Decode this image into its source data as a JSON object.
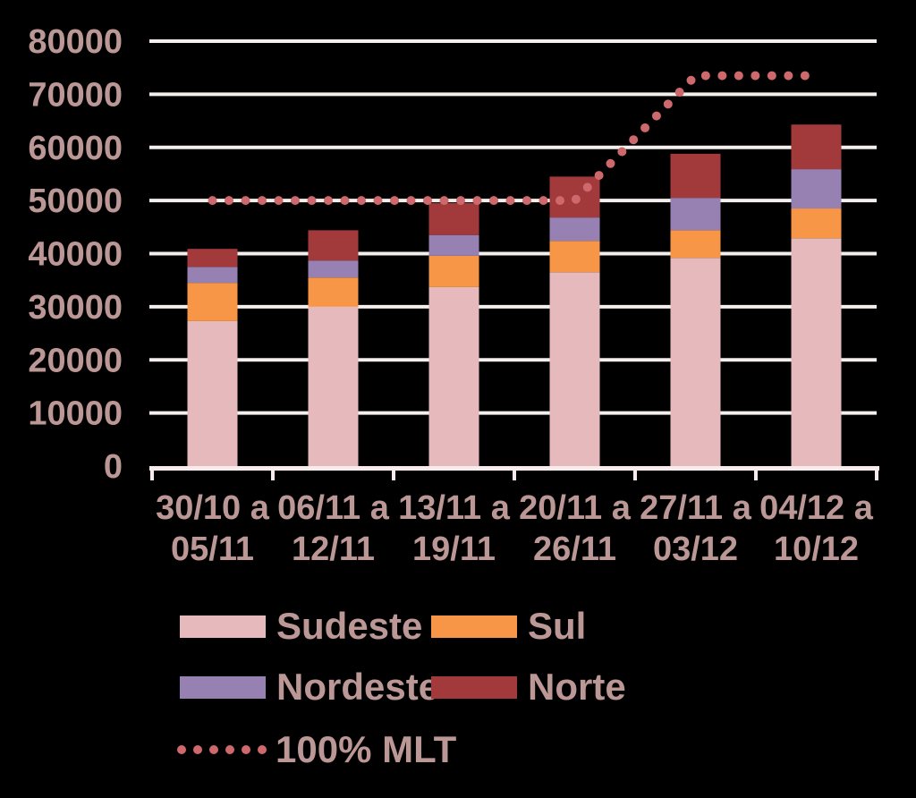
{
  "page": {
    "background": "#000000"
  },
  "chart_data": {
    "type": "bar",
    "stacked": true,
    "title": "",
    "xlabel": "",
    "ylabel": "",
    "categories": [
      {
        "line1": "30/10 a",
        "line2": "05/11"
      },
      {
        "line1": "06/11 a",
        "line2": "12/11"
      },
      {
        "line1": "13/11 a",
        "line2": "19/11"
      },
      {
        "line1": "20/11 a",
        "line2": "26/11"
      },
      {
        "line1": "27/11 a",
        "line2": "03/12"
      },
      {
        "line1": "04/12 a",
        "line2": "10/12"
      }
    ],
    "series": [
      {
        "name": "Sudeste",
        "color": "#e6b9bd",
        "values": [
          27300,
          30000,
          33700,
          36500,
          39200,
          42900
        ]
      },
      {
        "name": "Sul",
        "color": "#f69646",
        "values": [
          7200,
          5500,
          5900,
          5900,
          5200,
          5600
        ]
      },
      {
        "name": "Nordeste",
        "color": "#9781b3",
        "values": [
          3000,
          3200,
          3900,
          4400,
          6100,
          7400
        ]
      },
      {
        "name": "Norte",
        "color": "#a23a3b",
        "values": [
          3400,
          5700,
          6000,
          7700,
          8300,
          8400
        ]
      }
    ],
    "bar_totals": [
      40900,
      44400,
      49500,
      54500,
      58800,
      64300
    ],
    "line_series": {
      "name": "100% MLT",
      "color": "#cd686c",
      "style": "dotted",
      "values": [
        50000,
        50000,
        50000,
        50000,
        73500,
        73500
      ]
    },
    "ylim": [
      0,
      80000
    ],
    "ytick_step": 10000,
    "ytick_labels": [
      "0",
      "10000",
      "20000",
      "30000",
      "40000",
      "50000",
      "60000",
      "70000",
      "80000"
    ],
    "grid": true,
    "legend_position": "bottom-left",
    "colors": {
      "axis_text": "#bb9795",
      "gridline": "#f4eeec",
      "axis_line": "#f7ebeb"
    }
  }
}
